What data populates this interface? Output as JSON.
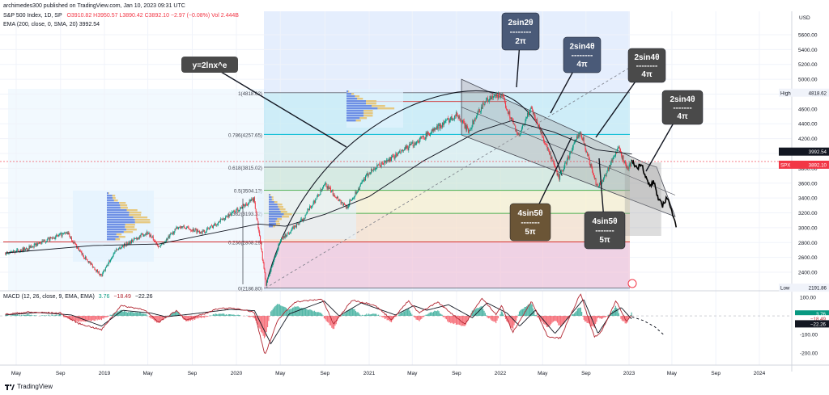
{
  "header": {
    "published": "archimedes300 published on TradingView.com, Jan 10, 2023 09:31 UTC",
    "symbol_line": "S&P 500 Index, 1D, SP",
    "ohlc": "O3910.82  H3950.57  L3890.42  C3892.10  −2.97 (−0.08%)  Vol 2.444B",
    "ema_line": "EMA (200, close, 0, SMA, 20)  3992.54",
    "macd_line": "MACD (12, 26, close, 9, EMA, EMA)",
    "macd_values": [
      "3.76",
      "−18.49",
      "−22.26"
    ]
  },
  "footer": {
    "brand": "TradingView"
  },
  "colors": {
    "up": "#089981",
    "down": "#f23645",
    "price_line": "#131722",
    "ema": "#131722",
    "fib_red": "#d32f2f",
    "macd": "#b22833",
    "signal": "#131722"
  },
  "chart_data": [
    {
      "type": "line",
      "name": "price",
      "currency": "USD",
      "x_ticks": [
        "May",
        "Sep",
        "2019",
        "May",
        "Sep",
        "2020",
        "May",
        "Sep",
        "2021",
        "May",
        "Sep",
        "2022",
        "May",
        "Sep",
        "2023",
        "May",
        "Sep",
        "2024"
      ],
      "y_ticks": [
        2400,
        2600,
        2800,
        3000,
        3200,
        3400,
        3600,
        3800,
        4000,
        4200,
        4400,
        4600,
        4800,
        5000,
        5200,
        5400,
        5600
      ],
      "ylim": [
        2150,
        5850
      ],
      "price_path": [
        [
          "2018-04-01",
          2650
        ],
        [
          "2018-06-01",
          2720
        ],
        [
          "2018-08-01",
          2850
        ],
        [
          "2018-09-20",
          2930
        ],
        [
          "2018-10-29",
          2650
        ],
        [
          "2018-12-24",
          2350
        ],
        [
          "2019-02-01",
          2700
        ],
        [
          "2019-04-30",
          2940
        ],
        [
          "2019-06-03",
          2740
        ],
        [
          "2019-07-26",
          3020
        ],
        [
          "2019-10-01",
          2940
        ],
        [
          "2019-12-31",
          3230
        ],
        [
          "2020-02-19",
          3386
        ],
        [
          "2020-03-23",
          2237
        ],
        [
          "2020-05-01",
          2830
        ],
        [
          "2020-07-01",
          3110
        ],
        [
          "2020-09-02",
          3580
        ],
        [
          "2020-10-30",
          3270
        ],
        [
          "2021-01-01",
          3750
        ],
        [
          "2021-04-01",
          4020
        ],
        [
          "2021-07-01",
          4320
        ],
        [
          "2021-09-02",
          4530
        ],
        [
          "2021-10-04",
          4300
        ],
        [
          "2021-11-18",
          4704
        ],
        [
          "2022-01-03",
          4796
        ],
        [
          "2022-02-23",
          4220
        ],
        [
          "2022-03-29",
          4630
        ],
        [
          "2022-06-16",
          3666
        ],
        [
          "2022-08-16",
          4305
        ],
        [
          "2022-09-30",
          3585
        ],
        [
          "2022-10-12",
          3577
        ],
        [
          "2022-12-01",
          4080
        ],
        [
          "2022-12-28",
          3783
        ],
        [
          "2023-01-09",
          3892
        ]
      ],
      "projection_path": [
        [
          "2023-01-09",
          3892
        ],
        [
          "2023-01-25",
          3800
        ],
        [
          "2023-02-05",
          3880
        ],
        [
          "2023-02-15",
          3700
        ],
        [
          "2023-02-28",
          3560
        ],
        [
          "2023-03-12",
          3620
        ],
        [
          "2023-03-24",
          3380
        ],
        [
          "2023-04-05",
          3300
        ],
        [
          "2023-04-18",
          3420
        ],
        [
          "2023-04-30",
          3220
        ],
        [
          "2023-05-08",
          3140
        ],
        [
          "2023-05-14",
          3000
        ]
      ],
      "ema200_path": [
        [
          "2018-04-01",
          2660
        ],
        [
          "2018-12-01",
          2760
        ],
        [
          "2019-06-01",
          2780
        ],
        [
          "2019-12-31",
          2990
        ],
        [
          "2020-03-01",
          3050
        ],
        [
          "2020-05-15",
          3020
        ],
        [
          "2020-09-01",
          3180
        ],
        [
          "2021-01-01",
          3420
        ],
        [
          "2021-06-01",
          3900
        ],
        [
          "2021-11-01",
          4300
        ],
        [
          "2022-02-01",
          4440
        ],
        [
          "2022-06-01",
          4290
        ],
        [
          "2022-10-01",
          4050
        ],
        [
          "2023-01-09",
          3992.54
        ]
      ],
      "fib_levels": [
        {
          "label": "1(4818.62)",
          "value": 4818.62
        },
        {
          "label": "0.786(4257.65)",
          "value": 4257.65
        },
        {
          "label": "0.618(3815.02)",
          "value": 3815.02
        },
        {
          "label": "0.5(3504.13)",
          "value": 3504.13
        },
        {
          "label": "0.382(3193.32)",
          "value": 3193.32
        },
        {
          "label": "0.236(2808.29)",
          "value": 2808.29
        },
        {
          "label": "0(2186.80)",
          "value": 2186.8
        }
      ],
      "price_labels": {
        "high_label": "High",
        "high": "4818.62",
        "low_label": "Low",
        "low": "2191.86",
        "ema": "3992.54",
        "symbol": "SPX",
        "last": "3892.10"
      },
      "annotations": [
        {
          "text": "y=2lnx^e"
        },
        {
          "text": [
            "2sin2θ",
            "--------",
            "2π"
          ]
        },
        {
          "text": [
            "2sin4θ",
            "--------",
            "4π"
          ]
        },
        {
          "text": [
            "2sin4θ",
            "--------",
            "4π"
          ]
        },
        {
          "text": [
            "2sin4θ",
            "-------",
            "4π"
          ]
        },
        {
          "text": [
            "4sin5θ",
            "-------",
            "5π"
          ]
        },
        {
          "text": [
            "4sin5θ",
            "-------",
            "5π"
          ]
        }
      ]
    },
    {
      "type": "line",
      "name": "MACD (12, 26, close, 9, EMA, EMA)",
      "y_ticks": [
        100,
        0,
        -100,
        -200
      ],
      "ylim": [
        -265,
        135
      ],
      "macd": [
        [
          "2018-04-01",
          8
        ],
        [
          "2018-06-01",
          20
        ],
        [
          "2018-09-01",
          15
        ],
        [
          "2018-10-20",
          -40
        ],
        [
          "2018-12-24",
          -75
        ],
        [
          "2019-02-15",
          55
        ],
        [
          "2019-04-20",
          35
        ],
        [
          "2019-05-30",
          -35
        ],
        [
          "2019-07-20",
          30
        ],
        [
          "2019-08-15",
          -25
        ],
        [
          "2019-11-15",
          42
        ],
        [
          "2020-01-10",
          38
        ],
        [
          "2020-02-19",
          20
        ],
        [
          "2020-03-20",
          -210
        ],
        [
          "2020-04-25",
          -20
        ],
        [
          "2020-06-10",
          75
        ],
        [
          "2020-08-25",
          90
        ],
        [
          "2020-09-25",
          -45
        ],
        [
          "2020-11-15",
          85
        ],
        [
          "2021-01-15",
          60
        ],
        [
          "2021-03-05",
          -20
        ],
        [
          "2021-04-20",
          80
        ],
        [
          "2021-05-20",
          15
        ],
        [
          "2021-07-10",
          75
        ],
        [
          "2021-09-25",
          -45
        ],
        [
          "2021-11-10",
          95
        ],
        [
          "2021-12-20",
          10
        ],
        [
          "2022-01-05",
          55
        ],
        [
          "2022-02-05",
          -90
        ],
        [
          "2022-03-31",
          80
        ],
        [
          "2022-05-15",
          -110
        ],
        [
          "2022-06-20",
          -120
        ],
        [
          "2022-08-16",
          120
        ],
        [
          "2022-09-25",
          -115
        ],
        [
          "2022-10-15",
          -85
        ],
        [
          "2022-11-25",
          80
        ],
        [
          "2022-12-25",
          -30
        ],
        [
          "2023-01-09",
          3.76
        ]
      ],
      "signal": [
        [
          "2018-04-01",
          5
        ],
        [
          "2018-07-01",
          18
        ],
        [
          "2018-10-01",
          5
        ],
        [
          "2018-12-24",
          -55
        ],
        [
          "2019-02-20",
          30
        ],
        [
          "2019-05-10",
          15
        ],
        [
          "2019-06-20",
          -5
        ],
        [
          "2019-08-30",
          10
        ],
        [
          "2019-12-15",
          35
        ],
        [
          "2020-02-20",
          28
        ],
        [
          "2020-04-05",
          -150
        ],
        [
          "2020-05-25",
          10
        ],
        [
          "2020-08-30",
          80
        ],
        [
          "2020-10-10",
          0
        ],
        [
          "2020-12-10",
          70
        ],
        [
          "2021-03-15",
          5
        ],
        [
          "2021-05-05",
          55
        ],
        [
          "2021-06-10",
          30
        ],
        [
          "2021-08-10",
          60
        ],
        [
          "2021-10-15",
          -10
        ],
        [
          "2021-11-25",
          70
        ],
        [
          "2022-01-20",
          15
        ],
        [
          "2022-02-25",
          -55
        ],
        [
          "2022-04-10",
          30
        ],
        [
          "2022-06-05",
          -95
        ],
        [
          "2022-08-25",
          90
        ],
        [
          "2022-10-05",
          -95
        ],
        [
          "2022-11-10",
          10
        ],
        [
          "2022-12-10",
          45
        ],
        [
          "2023-01-09",
          -18.49
        ]
      ],
      "projection": [
        [
          "2023-01-09",
          -5
        ],
        [
          "2023-02-10",
          -25
        ],
        [
          "2023-03-15",
          -60
        ],
        [
          "2023-04-10",
          -105
        ]
      ]
    }
  ]
}
